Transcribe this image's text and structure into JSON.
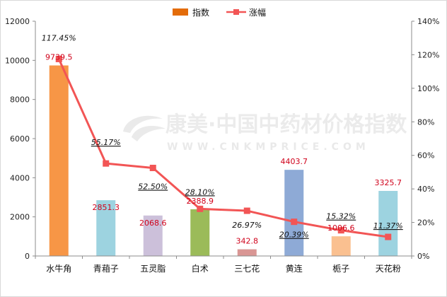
{
  "chart_data": {
    "type": "bar",
    "categories": [
      "水牛角",
      "青葙子",
      "五灵脂",
      "白术",
      "三七花",
      "黄连",
      "栀子",
      "天花粉"
    ],
    "series": [
      {
        "name": "指数",
        "kind": "bar",
        "axis": "left",
        "values": [
          9739.5,
          2851.3,
          2068.6,
          2388.9,
          342.8,
          4403.7,
          1006.6,
          3325.7
        ],
        "value_labels": [
          "9739.5",
          "2851.3",
          "2068.6",
          "2388.9",
          "342.8",
          "4403.7",
          "1006.6",
          "3325.7"
        ],
        "colors": [
          "#f79646",
          "#9dd3e0",
          "#ccc0da",
          "#9bbb59",
          "#d99694",
          "#8eaad6",
          "#fac090",
          "#9dd3e0"
        ]
      },
      {
        "name": "涨幅",
        "kind": "line",
        "axis": "right",
        "values": [
          117.45,
          55.17,
          52.5,
          28.1,
          26.97,
          20.39,
          15.32,
          11.37
        ],
        "value_labels": [
          "117.45%",
          "55.17%",
          "52.50%",
          "28.10%",
          "26.97%",
          "20.39%",
          "15.32%",
          "11.37%"
        ],
        "color": "#f25555"
      }
    ],
    "y_left": {
      "min": 0,
      "max": 12000,
      "step": 2000,
      "ticks": [
        "0",
        "2000",
        "4000",
        "6000",
        "8000",
        "10000",
        "12000"
      ]
    },
    "y_right": {
      "min": 0,
      "max": 140,
      "step": 20,
      "ticks": [
        "0%",
        "20%",
        "40%",
        "60%",
        "80%",
        "100%",
        "120%",
        "140%"
      ]
    },
    "legend_position": "top-center",
    "grid": false,
    "watermark": {
      "cn": "康美·中国中药材价格指数",
      "en": "WWW.CNKMPRICE.COM"
    }
  }
}
